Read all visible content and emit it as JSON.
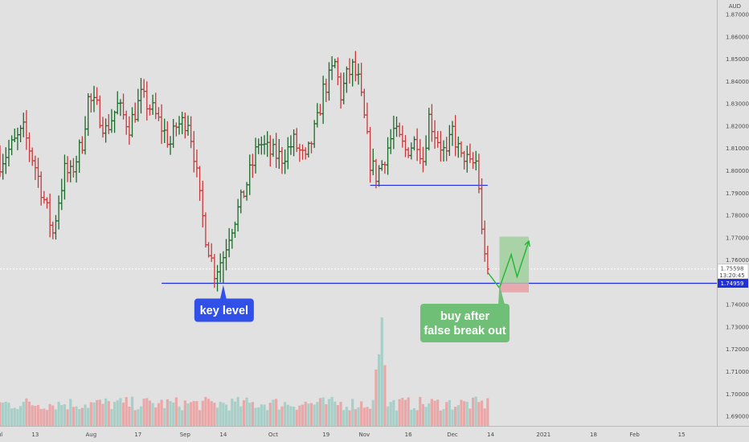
{
  "chart_data": {
    "type": "ohlc",
    "pair": "",
    "currency": "AUD",
    "x_ticks": [
      {
        "label": "ul",
        "day": 0
      },
      {
        "label": "13",
        "day": 12
      },
      {
        "label": "Aug",
        "day": 31
      },
      {
        "label": "17",
        "day": 47
      },
      {
        "label": "Sep",
        "day": 63
      },
      {
        "label": "14",
        "day": 76
      },
      {
        "label": "Oct",
        "day": 93
      },
      {
        "label": "19",
        "day": 111
      },
      {
        "label": "Nov",
        "day": 124
      },
      {
        "label": "16",
        "day": 139
      },
      {
        "label": "Dec",
        "day": 154
      },
      {
        "label": "14",
        "day": 167
      },
      {
        "label": "2021",
        "day": 185
      },
      {
        "label": "18",
        "day": 202
      },
      {
        "label": "Feb",
        "day": 216
      },
      {
        "label": "15",
        "day": 232
      }
    ],
    "y_ticks": [
      1.87,
      1.86,
      1.85,
      1.84,
      1.83,
      1.82,
      1.81,
      1.8,
      1.79,
      1.78,
      1.77,
      1.76,
      1.74,
      1.73,
      1.72,
      1.71,
      1.7,
      1.69
    ],
    "y_tick_decimals": 5,
    "ylim": [
      1.6857,
      1.8765
    ],
    "xlim": [
      0,
      244
    ],
    "last_bar_day": 166,
    "current_price": {
      "value": 1.75598,
      "label": "1.75598",
      "countdown": "13:20:45"
    },
    "key_level": {
      "value": 1.74959,
      "label": "1.74959",
      "from_day": 55
    },
    "resistance": {
      "value": 1.7935,
      "from_day": 126,
      "to_day": 166
    },
    "bars": {
      "key_days": [
        0,
        8,
        12,
        18,
        20,
        22,
        24,
        28,
        30,
        33,
        36,
        40,
        44,
        48,
        52,
        56,
        58,
        60,
        64,
        66,
        68,
        70,
        72,
        73,
        74,
        76,
        78,
        82,
        86,
        88,
        92,
        96,
        100,
        104,
        108,
        110,
        112,
        114,
        116,
        118,
        120,
        122,
        124,
        126,
        128,
        130,
        134,
        138,
        142,
        144,
        146,
        148,
        152,
        154,
        157,
        158,
        160,
        162,
        163,
        164,
        165,
        166
      ],
      "key_closes": [
        1.804,
        1.818,
        1.802,
        1.772,
        1.787,
        1.8,
        1.798,
        1.813,
        1.832,
        1.828,
        1.818,
        1.829,
        1.82,
        1.833,
        1.827,
        1.817,
        1.812,
        1.82,
        1.823,
        1.808,
        1.787,
        1.771,
        1.76,
        1.755,
        1.757,
        1.762,
        1.772,
        1.786,
        1.803,
        1.813,
        1.808,
        1.806,
        1.813,
        1.804,
        1.822,
        1.836,
        1.841,
        1.848,
        1.834,
        1.842,
        1.846,
        1.84,
        1.823,
        1.804,
        1.798,
        1.803,
        1.818,
        1.809,
        1.814,
        1.805,
        1.824,
        1.817,
        1.806,
        1.818,
        1.805,
        1.807,
        1.802,
        1.804,
        1.793,
        1.772,
        1.765,
        1.757
      ],
      "up_color": "#1b6b2a",
      "down_color": "#c9383a"
    },
    "volume": {
      "up_color": "#a7cfc8",
      "down_color": "#eaa7a7",
      "spikes": [
        {
          "day": 130,
          "rel": 1.0
        },
        {
          "day": 129,
          "rel": 0.66
        },
        {
          "day": 128,
          "rel": 0.52
        },
        {
          "day": 131,
          "rel": 0.56
        }
      ]
    },
    "annotations": [
      {
        "text": "key level",
        "color": "#3050e8",
        "day": 76,
        "price": 1.74959
      },
      {
        "text_line1": "buy after",
        "text_line2": "false break out",
        "color": "#6fbf76"
      }
    ],
    "trade_box": {
      "from_day": 170,
      "to_day": 180,
      "entry": 1.74959,
      "target": 1.7705,
      "stop": 1.7455,
      "profit_color": "#9fcf9c",
      "loss_color": "#e9a3a8"
    },
    "projection_path": [
      [
        166,
        1.7545
      ],
      [
        170,
        1.7475
      ],
      [
        174,
        1.7625
      ],
      [
        176,
        1.7525
      ],
      [
        180,
        1.7685
      ]
    ],
    "grid": false,
    "legend": "none"
  }
}
